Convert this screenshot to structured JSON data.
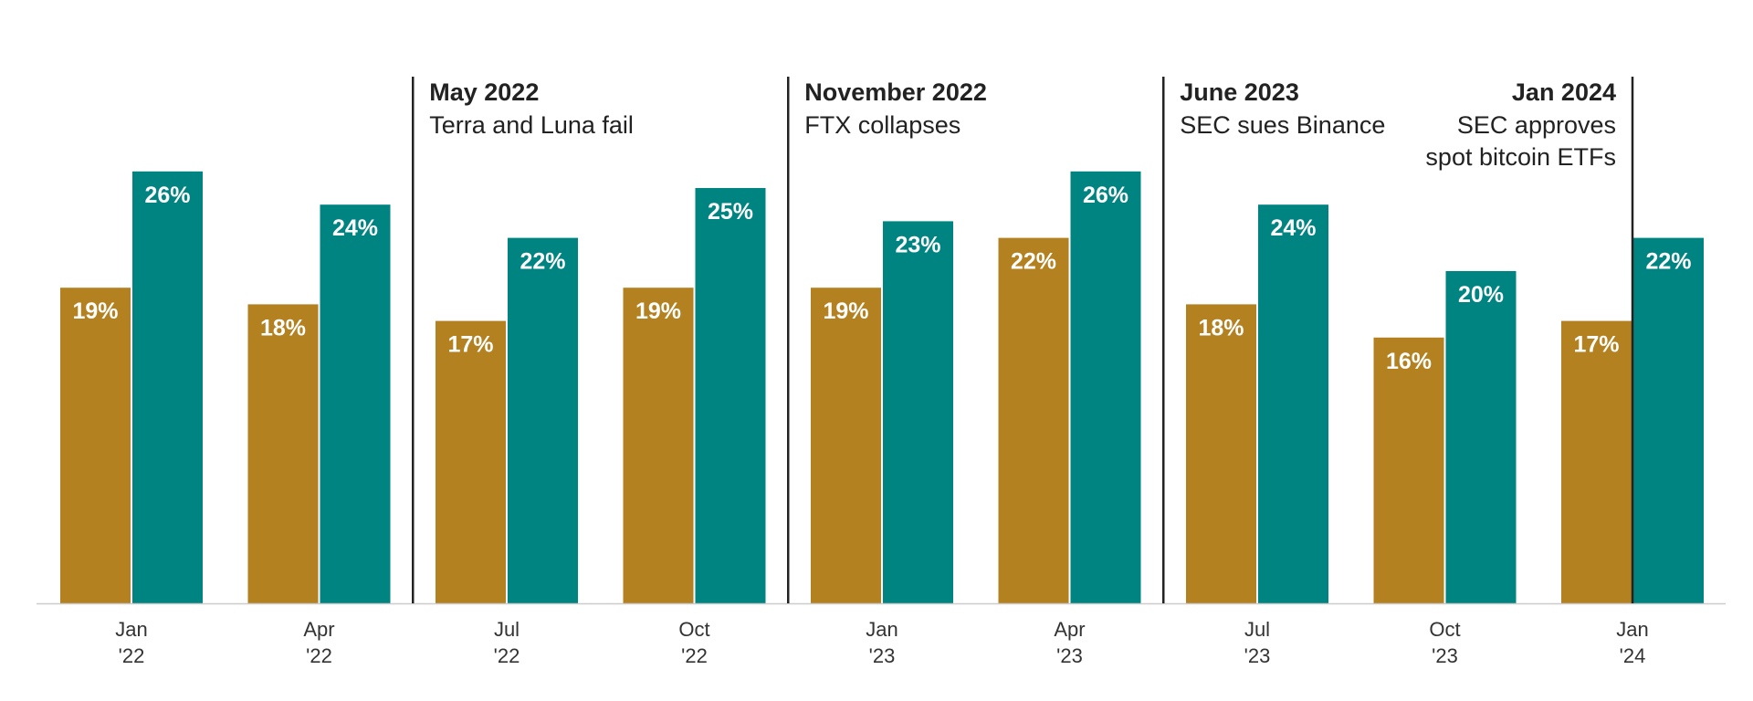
{
  "chart_data": {
    "type": "bar",
    "title": "",
    "xlabel": "",
    "ylabel": "",
    "ylim": [
      0,
      30
    ],
    "grid": false,
    "legend": "none",
    "categories": [
      [
        "Jan",
        "'22"
      ],
      [
        "Apr",
        "'22"
      ],
      [
        "Jul",
        "'22"
      ],
      [
        "Oct",
        "'22"
      ],
      [
        "Jan",
        "'23"
      ],
      [
        "Apr",
        "'23"
      ],
      [
        "Jul",
        "'23"
      ],
      [
        "Oct",
        "'23"
      ],
      [
        "Jan",
        "'24"
      ]
    ],
    "series": [
      {
        "color": "#B48121",
        "values": [
          19,
          18,
          17,
          19,
          19,
          22,
          18,
          16,
          17
        ],
        "labels": [
          "19%",
          "18%",
          "17%",
          "19%",
          "19%",
          "22%",
          "18%",
          "16%",
          "17%"
        ]
      },
      {
        "color": "#008481",
        "values": [
          26,
          24,
          22,
          25,
          23,
          26,
          24,
          20,
          22
        ],
        "labels": [
          "26%",
          "24%",
          "22%",
          "25%",
          "23%",
          "26%",
          "24%",
          "20%",
          "22%"
        ]
      }
    ],
    "annotations": [
      {
        "after_category": 1,
        "title": "May 2022",
        "lines": [
          "Terra and Luna fail"
        ],
        "align": "left"
      },
      {
        "after_category": 3,
        "title": "November 2022",
        "lines": [
          "FTX collapses"
        ],
        "align": "left"
      },
      {
        "after_category": 5,
        "title": "June 2023",
        "lines": [
          "SEC sues Binance"
        ],
        "align": "left"
      },
      {
        "at_category": 8,
        "title": "Jan 2024",
        "lines": [
          "SEC approves",
          "spot bitcoin ETFs"
        ],
        "align": "right"
      }
    ]
  }
}
